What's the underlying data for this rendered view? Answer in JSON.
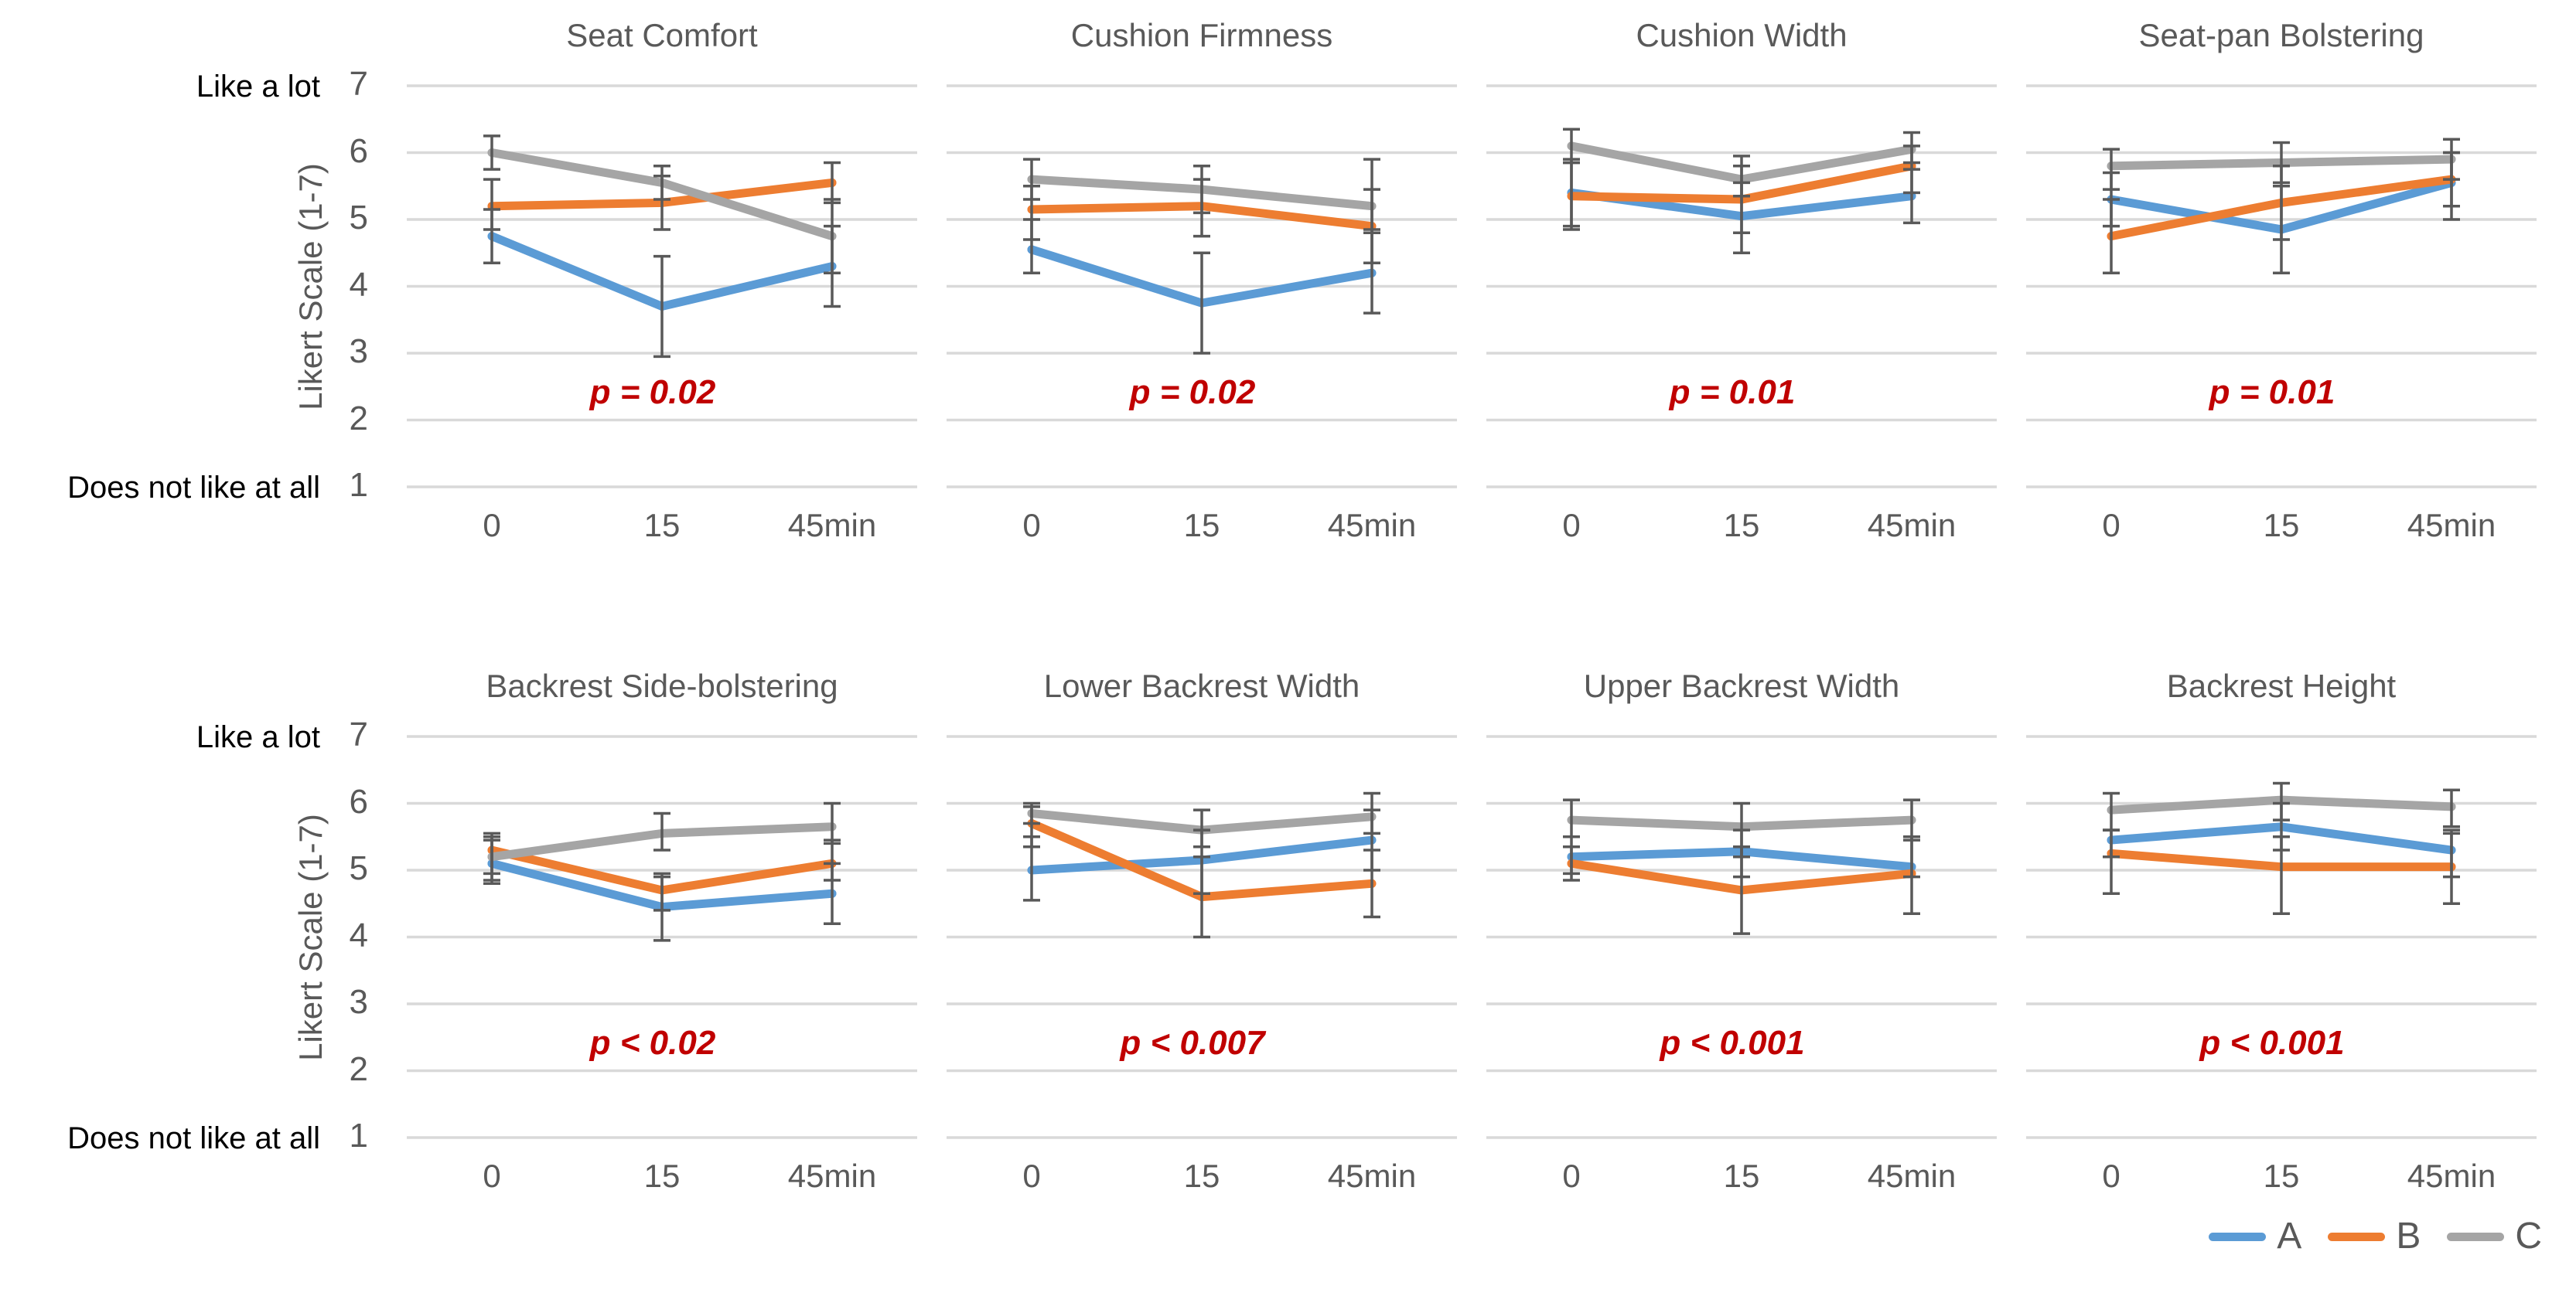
{
  "figure": {
    "y_axis": {
      "label": "Likert Scale (1-7)",
      "top_anchor": "Like a lot",
      "bottom_anchor": "Does not like at all",
      "ticks": [
        7,
        6,
        5,
        4,
        3,
        2,
        1
      ],
      "range": [
        1,
        7
      ]
    },
    "x_categories": [
      "0",
      "15",
      "45min"
    ],
    "legend": [
      {
        "name": "A",
        "color": "#5B9BD5"
      },
      {
        "name": "B",
        "color": "#ED7D31"
      },
      {
        "name": "C",
        "color": "#A5A5A5"
      }
    ],
    "colors": {
      "gridline": "#D9D9D9",
      "error_bar": "#595959",
      "title_text": "#595959",
      "tick_text": "#595959",
      "anchor_text": "#000000",
      "p_text": "#C00000"
    }
  },
  "chart_data": [
    {
      "type": "line",
      "title": "Seat Comfort",
      "p_label": "p = 0.02",
      "row": 0,
      "categories": [
        "0",
        "15",
        "45min"
      ],
      "ylim": [
        1,
        7
      ],
      "grid": true,
      "series": [
        {
          "name": "A",
          "values": [
            4.75,
            3.7,
            4.3
          ],
          "err_lo": [
            4.35,
            2.95,
            3.7
          ],
          "err_hi": [
            5.15,
            4.45,
            4.9
          ]
        },
        {
          "name": "B",
          "values": [
            5.2,
            5.25,
            5.55
          ],
          "err_lo": [
            4.85,
            4.85,
            5.25
          ],
          "err_hi": [
            5.6,
            5.65,
            5.85
          ]
        },
        {
          "name": "C",
          "values": [
            6.0,
            5.55,
            4.75
          ],
          "err_lo": [
            5.75,
            5.3,
            4.2
          ],
          "err_hi": [
            6.25,
            5.8,
            5.3
          ]
        }
      ]
    },
    {
      "type": "line",
      "title": "Cushion Firmness",
      "p_label": "p = 0.02",
      "row": 0,
      "categories": [
        "0",
        "15",
        "45min"
      ],
      "ylim": [
        1,
        7
      ],
      "grid": true,
      "series": [
        {
          "name": "A",
          "values": [
            4.55,
            3.75,
            4.2
          ],
          "err_lo": [
            4.2,
            3.0,
            3.6
          ],
          "err_hi": [
            5.0,
            4.5,
            4.85
          ]
        },
        {
          "name": "B",
          "values": [
            5.15,
            5.2,
            4.9
          ],
          "err_lo": [
            4.7,
            4.75,
            4.35
          ],
          "err_hi": [
            5.5,
            5.6,
            5.45
          ]
        },
        {
          "name": "C",
          "values": [
            5.6,
            5.45,
            5.2
          ],
          "err_lo": [
            5.3,
            5.1,
            4.8
          ],
          "err_hi": [
            5.9,
            5.8,
            5.9
          ]
        }
      ]
    },
    {
      "type": "line",
      "title": "Cushion Width",
      "p_label": "p = 0.01",
      "row": 0,
      "categories": [
        "0",
        "15",
        "45min"
      ],
      "ylim": [
        1,
        7
      ],
      "grid": true,
      "series": [
        {
          "name": "A",
          "values": [
            5.4,
            5.05,
            5.35
          ],
          "err_lo": [
            4.85,
            4.5,
            4.95
          ],
          "err_hi": [
            5.9,
            5.55,
            5.75
          ]
        },
        {
          "name": "B",
          "values": [
            5.35,
            5.3,
            5.8
          ],
          "err_lo": [
            4.9,
            4.8,
            5.4
          ],
          "err_hi": [
            5.85,
            5.8,
            6.1
          ]
        },
        {
          "name": "C",
          "values": [
            6.1,
            5.6,
            6.05
          ],
          "err_lo": [
            5.85,
            5.35,
            5.85
          ],
          "err_hi": [
            6.35,
            5.95,
            6.3
          ]
        }
      ]
    },
    {
      "type": "line",
      "title": "Seat-pan Bolstering",
      "p_label": "p = 0.01",
      "row": 0,
      "categories": [
        "0",
        "15",
        "45min"
      ],
      "ylim": [
        1,
        7
      ],
      "grid": true,
      "series": [
        {
          "name": "A",
          "values": [
            5.3,
            4.85,
            5.55
          ],
          "err_lo": [
            4.9,
            4.2,
            5.0
          ],
          "err_hi": [
            5.7,
            5.5,
            6.0
          ]
        },
        {
          "name": "B",
          "values": [
            4.75,
            5.25,
            5.6
          ],
          "err_lo": [
            4.2,
            4.7,
            5.2
          ],
          "err_hi": [
            5.3,
            5.8,
            6.0
          ]
        },
        {
          "name": "C",
          "values": [
            5.8,
            5.85,
            5.9
          ],
          "err_lo": [
            5.45,
            5.55,
            5.6
          ],
          "err_hi": [
            6.05,
            6.15,
            6.2
          ]
        }
      ]
    },
    {
      "type": "line",
      "title": "Backrest Side-bolstering",
      "p_label": "p < 0.02",
      "row": 1,
      "categories": [
        "0",
        "15",
        "45min"
      ],
      "ylim": [
        1,
        7
      ],
      "grid": true,
      "series": [
        {
          "name": "A",
          "values": [
            5.1,
            4.45,
            4.65
          ],
          "err_lo": [
            4.8,
            3.95,
            4.2
          ],
          "err_hi": [
            5.45,
            4.9,
            5.1
          ]
        },
        {
          "name": "B",
          "values": [
            5.3,
            4.7,
            5.1
          ],
          "err_lo": [
            4.95,
            4.4,
            4.85
          ],
          "err_hi": [
            5.55,
            4.95,
            5.45
          ]
        },
        {
          "name": "C",
          "values": [
            5.2,
            5.55,
            5.65
          ],
          "err_lo": [
            4.85,
            5.3,
            5.4
          ],
          "err_hi": [
            5.5,
            5.85,
            6.0
          ]
        }
      ]
    },
    {
      "type": "line",
      "title": "Lower Backrest Width",
      "p_label": "p < 0.007",
      "row": 1,
      "categories": [
        "0",
        "15",
        "45min"
      ],
      "ylim": [
        1,
        7
      ],
      "grid": true,
      "series": [
        {
          "name": "A",
          "values": [
            5.0,
            5.15,
            5.45
          ],
          "err_lo": [
            4.55,
            4.65,
            5.0
          ],
          "err_hi": [
            5.5,
            5.6,
            5.9
          ]
        },
        {
          "name": "B",
          "values": [
            5.7,
            4.6,
            4.8
          ],
          "err_lo": [
            5.35,
            4.0,
            4.3
          ],
          "err_hi": [
            6.0,
            5.2,
            5.3
          ]
        },
        {
          "name": "C",
          "values": [
            5.85,
            5.6,
            5.8
          ],
          "err_lo": [
            5.7,
            5.35,
            5.55
          ],
          "err_hi": [
            5.95,
            5.9,
            6.15
          ]
        }
      ]
    },
    {
      "type": "line",
      "title": "Upper Backrest Width",
      "p_label": "p < 0.001",
      "row": 1,
      "categories": [
        "0",
        "15",
        "45min"
      ],
      "ylim": [
        1,
        7
      ],
      "grid": true,
      "series": [
        {
          "name": "A",
          "values": [
            5.2,
            5.28,
            5.05
          ],
          "err_lo": [
            4.95,
            4.9,
            4.9
          ],
          "err_hi": [
            5.5,
            5.6,
            5.5
          ]
        },
        {
          "name": "B",
          "values": [
            5.1,
            4.7,
            4.95
          ],
          "err_lo": [
            4.85,
            4.05,
            4.35
          ],
          "err_hi": [
            5.35,
            5.35,
            5.5
          ]
        },
        {
          "name": "C",
          "values": [
            5.75,
            5.65,
            5.75
          ],
          "err_lo": [
            5.5,
            5.2,
            5.45
          ],
          "err_hi": [
            6.05,
            6.0,
            6.05
          ]
        }
      ]
    },
    {
      "type": "line",
      "title": "Backrest Height",
      "p_label": "p < 0.001",
      "row": 1,
      "categories": [
        "0",
        "15",
        "45min"
      ],
      "ylim": [
        1,
        7
      ],
      "grid": true,
      "series": [
        {
          "name": "A",
          "values": [
            5.45,
            5.65,
            5.3
          ],
          "err_lo": [
            5.2,
            5.3,
            4.9
          ],
          "err_hi": [
            5.6,
            6.0,
            5.6
          ]
        },
        {
          "name": "B",
          "values": [
            5.25,
            5.05,
            5.05
          ],
          "err_lo": [
            4.65,
            4.35,
            4.5
          ],
          "err_hi": [
            5.6,
            5.5,
            5.55
          ]
        },
        {
          "name": "C",
          "values": [
            5.9,
            6.05,
            5.95
          ],
          "err_lo": [
            5.6,
            5.75,
            5.65
          ],
          "err_hi": [
            6.15,
            6.3,
            6.2
          ]
        }
      ]
    }
  ]
}
